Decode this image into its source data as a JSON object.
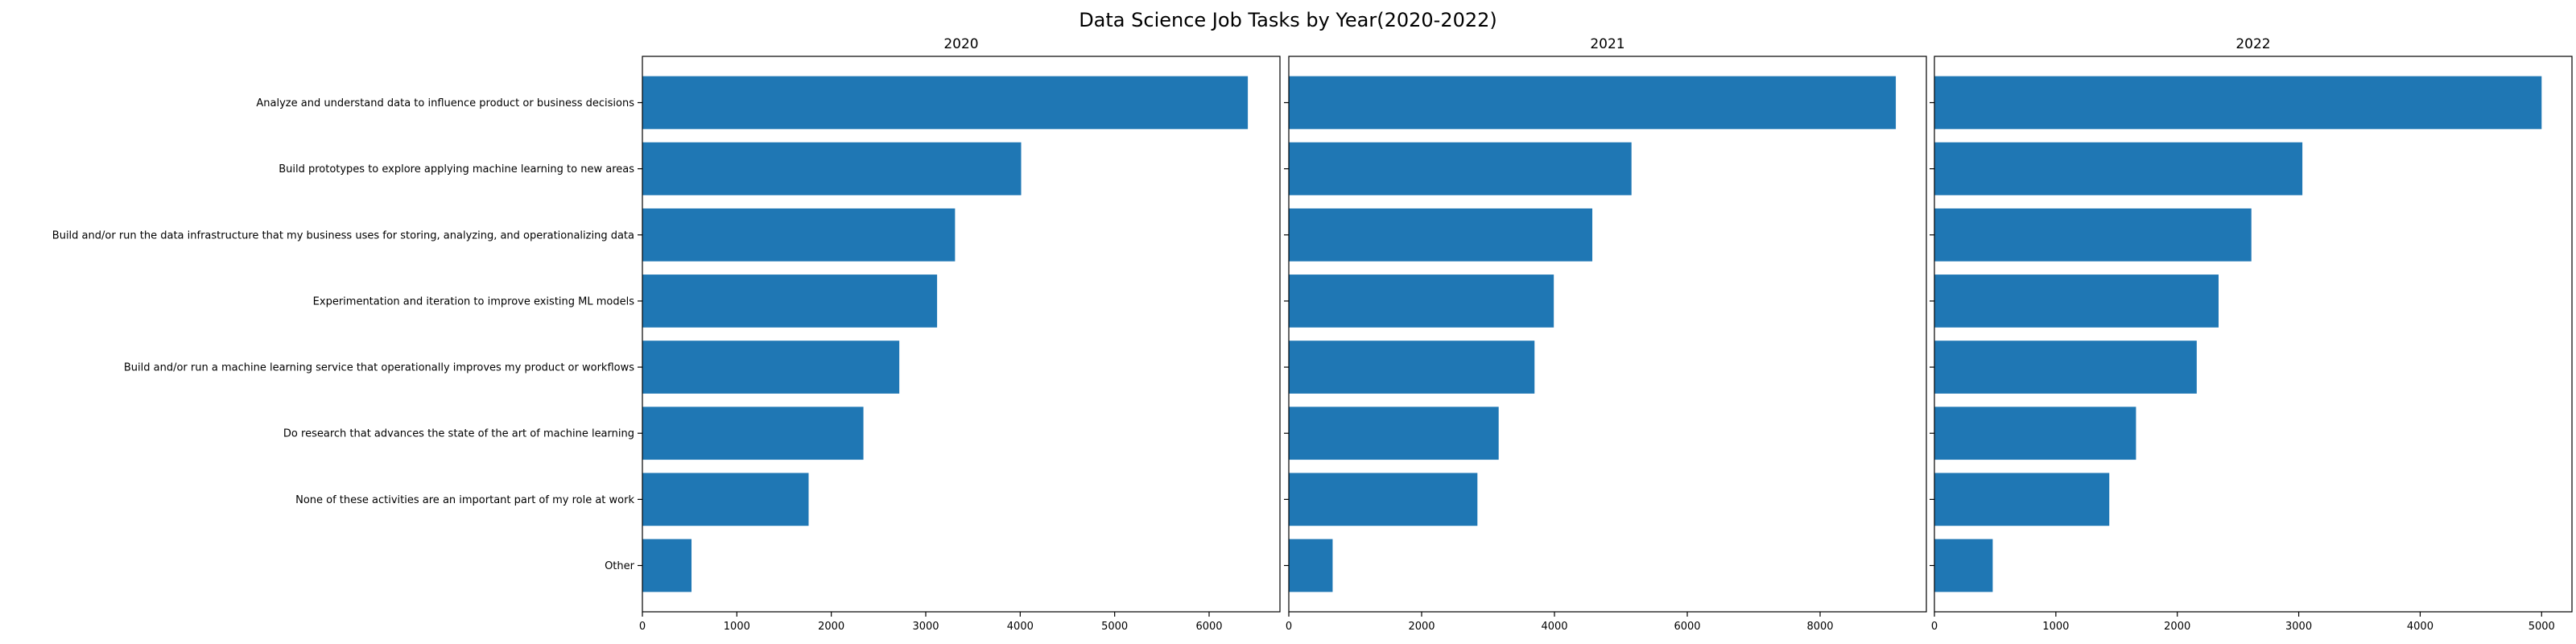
{
  "figure": {
    "title": "Data Science Job Tasks by Year(2020-2022)"
  },
  "colors": {
    "bar": "#1f77b4",
    "axes": "#000000",
    "background": "#ffffff"
  },
  "chart_data": [
    {
      "type": "bar",
      "orientation": "horizontal",
      "title": "2020",
      "xlabel": "",
      "ylabel": "",
      "categories": [
        "Analyze and understand data to influence product or business decisions",
        "Build prototypes to explore applying machine learning to new areas",
        "Build and/or run the data infrastructure that my business uses for storing, analyzing, and operationalizing data",
        "Experimentation and iteration to improve existing ML models",
        "Build and/or run a machine learning service that operationally improves my product or workflows",
        "Do research that advances the state of the art of machine learning",
        "None of these activities are an important part of my role at work",
        "Other"
      ],
      "values": [
        6410,
        4010,
        3310,
        3120,
        2720,
        2340,
        1760,
        520
      ],
      "xlim": [
        0,
        6750
      ],
      "xticks": [
        0,
        1000,
        2000,
        3000,
        4000,
        5000,
        6000
      ],
      "grid": false,
      "show_category_labels": true
    },
    {
      "type": "bar",
      "orientation": "horizontal",
      "title": "2021",
      "xlabel": "",
      "ylabel": "",
      "categories": [
        "Analyze and understand data to influence product or business decisions",
        "Build prototypes to explore applying machine learning to new areas",
        "Build and/or run the data infrastructure that my business uses for storing, analyzing, and operationalizing data",
        "Experimentation and iteration to improve existing ML models",
        "Build and/or run a machine learning service that operationally improves my product or workflows",
        "Do research that advances the state of the art of machine learning",
        "None of these activities are an important part of my role at work",
        "Other"
      ],
      "values": [
        9140,
        5160,
        4570,
        3990,
        3700,
        3160,
        2840,
        660
      ],
      "xlim": [
        0,
        9600
      ],
      "xticks": [
        0,
        2000,
        4000,
        6000,
        8000
      ],
      "grid": false,
      "show_category_labels": false
    },
    {
      "type": "bar",
      "orientation": "horizontal",
      "title": "2022",
      "xlabel": "",
      "ylabel": "",
      "categories": [
        "Analyze and understand data to influence product or business decisions",
        "Build prototypes to explore applying machine learning to new areas",
        "Build and/or run the data infrastructure that my business uses for storing, analyzing, and operationalizing data",
        "Experimentation and iteration to improve existing ML models",
        "Build and/or run a machine learning service that operationally improves my product or workflows",
        "Do research that advances the state of the art of machine learning",
        "None of these activities are an important part of my role at work",
        "Other"
      ],
      "values": [
        5000,
        3030,
        2610,
        2340,
        2160,
        1660,
        1440,
        480
      ],
      "xlim": [
        0,
        5250
      ],
      "xticks": [
        0,
        1000,
        2000,
        3000,
        4000,
        5000
      ],
      "grid": false,
      "show_category_labels": false
    }
  ]
}
